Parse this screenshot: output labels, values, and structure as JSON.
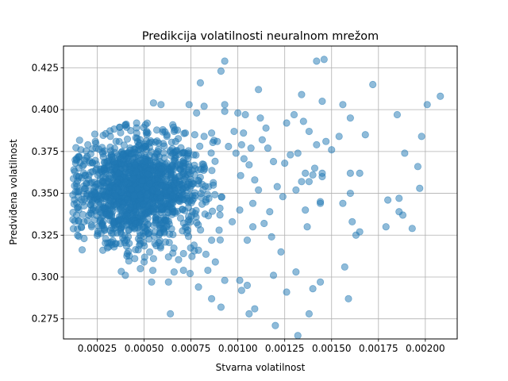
{
  "chart_data": {
    "type": "scatter",
    "title": "Predikcija volatilnosti neuralnom mrežom",
    "xlabel": "Stvarna volatilnost",
    "ylabel": "Predviđena volatilnost",
    "xlim": [
      7e-05,
      0.00217
    ],
    "ylim": [
      0.263,
      0.438
    ],
    "x_ticks": [
      {
        "value": 0.00025,
        "label": "0.00025"
      },
      {
        "value": 0.0005,
        "label": "0.00050"
      },
      {
        "value": 0.00075,
        "label": "0.00075"
      },
      {
        "value": 0.001,
        "label": "0.00100"
      },
      {
        "value": 0.00125,
        "label": "0.00125"
      },
      {
        "value": 0.0015,
        "label": "0.00150"
      },
      {
        "value": 0.00175,
        "label": "0.00175"
      },
      {
        "value": 0.002,
        "label": "0.00200"
      }
    ],
    "y_ticks": [
      {
        "value": 0.275,
        "label": "0.275"
      },
      {
        "value": 0.3,
        "label": "0.300"
      },
      {
        "value": 0.325,
        "label": "0.325"
      },
      {
        "value": 0.35,
        "label": "0.350"
      },
      {
        "value": 0.375,
        "label": "0.375"
      },
      {
        "value": 0.4,
        "label": "0.400"
      },
      {
        "value": 0.425,
        "label": "0.425"
      }
    ],
    "grid": true,
    "marker_color": "#1f77b4",
    "marker_alpha": 0.5,
    "points": [
      [
        0.00093,
        0.429
      ],
      [
        0.00091,
        0.423
      ],
      [
        0.00142,
        0.429
      ],
      [
        0.00146,
        0.43
      ],
      [
        0.00172,
        0.415
      ],
      [
        0.0008,
        0.416
      ],
      [
        0.00111,
        0.412
      ],
      [
        0.00134,
        0.409
      ],
      [
        0.00208,
        0.408
      ],
      [
        0.00201,
        0.403
      ],
      [
        0.00145,
        0.405
      ],
      [
        0.00156,
        0.403
      ],
      [
        0.00055,
        0.404
      ],
      [
        0.00059,
        0.403
      ],
      [
        0.00093,
        0.403
      ],
      [
        0.00074,
        0.403
      ],
      [
        0.00082,
        0.402
      ],
      [
        0.001,
        0.398
      ],
      [
        0.00104,
        0.397
      ],
      [
        0.0013,
        0.397
      ],
      [
        0.00185,
        0.397
      ],
      [
        0.00078,
        0.398
      ],
      [
        0.00093,
        0.399
      ],
      [
        0.00112,
        0.395
      ],
      [
        0.00126,
        0.392
      ],
      [
        0.00135,
        0.393
      ],
      [
        0.0016,
        0.395
      ],
      [
        0.00115,
        0.389
      ],
      [
        0.00098,
        0.387
      ],
      [
        0.00103,
        0.386
      ],
      [
        0.00154,
        0.384
      ],
      [
        0.00168,
        0.385
      ],
      [
        0.00198,
        0.384
      ],
      [
        0.00147,
        0.381
      ],
      [
        0.00142,
        0.379
      ],
      [
        0.00113,
        0.382
      ],
      [
        0.00138,
        0.387
      ],
      [
        0.0015,
        0.376
      ],
      [
        0.00189,
        0.374
      ],
      [
        0.00132,
        0.374
      ],
      [
        0.00128,
        0.373
      ],
      [
        0.00125,
        0.368
      ],
      [
        0.00119,
        0.369
      ],
      [
        0.00116,
        0.377
      ],
      [
        0.00107,
        0.377
      ],
      [
        0.00102,
        0.379
      ],
      [
        0.00136,
        0.362
      ],
      [
        0.00141,
        0.365
      ],
      [
        0.00145,
        0.362
      ],
      [
        0.00138,
        0.357
      ],
      [
        0.0014,
        0.361
      ],
      [
        0.00145,
        0.36
      ],
      [
        0.0016,
        0.362
      ],
      [
        0.00165,
        0.362
      ],
      [
        0.00196,
        0.366
      ],
      [
        0.00197,
        0.353
      ],
      [
        0.00131,
        0.352
      ],
      [
        0.00134,
        0.357
      ],
      [
        0.00121,
        0.354
      ],
      [
        0.00124,
        0.348
      ],
      [
        0.00144,
        0.344
      ],
      [
        0.00144,
        0.345
      ],
      [
        0.00136,
        0.34
      ],
      [
        0.00156,
        0.344
      ],
      [
        0.0016,
        0.35
      ],
      [
        0.0018,
        0.346
      ],
      [
        0.00186,
        0.347
      ],
      [
        0.00186,
        0.339
      ],
      [
        0.00188,
        0.337
      ],
      [
        0.00193,
        0.329
      ],
      [
        0.00179,
        0.33
      ],
      [
        0.00161,
        0.333
      ],
      [
        0.00165,
        0.327
      ],
      [
        0.00163,
        0.325
      ],
      [
        0.00137,
        0.33
      ],
      [
        0.00117,
        0.339
      ],
      [
        0.00114,
        0.332
      ],
      [
        0.00118,
        0.324
      ],
      [
        0.00108,
        0.33
      ],
      [
        0.00105,
        0.322
      ],
      [
        0.00123,
        0.315
      ],
      [
        0.00131,
        0.303
      ],
      [
        0.0014,
        0.293
      ],
      [
        0.00144,
        0.297
      ],
      [
        0.00157,
        0.306
      ],
      [
        0.00159,
        0.287
      ],
      [
        0.00126,
        0.291
      ],
      [
        0.00119,
        0.301
      ],
      [
        0.00105,
        0.295
      ],
      [
        0.00102,
        0.292
      ],
      [
        0.00101,
        0.298
      ],
      [
        0.00093,
        0.298
      ],
      [
        0.00091,
        0.282
      ],
      [
        0.00086,
        0.287
      ],
      [
        0.00106,
        0.278
      ],
      [
        0.00109,
        0.281
      ],
      [
        0.0012,
        0.271
      ],
      [
        0.00132,
        0.265
      ],
      [
        0.00138,
        0.278
      ],
      [
        0.00064,
        0.278
      ],
      [
        0.00079,
        0.294
      ],
      [
        0.00063,
        0.297
      ],
      [
        0.00054,
        0.297
      ],
      [
        0.00066,
        0.303
      ],
      [
        0.00071,
        0.304
      ],
      [
        0.00084,
        0.304
      ],
      [
        0.00088,
        0.309
      ],
      [
        0.0004,
        0.301
      ],
      [
        0.00048,
        0.305
      ],
      [
        0.00028,
        0.316
      ],
      [
        0.00034,
        0.318
      ],
      [
        0.00045,
        0.311
      ],
      [
        0.00018,
        0.323
      ],
      [
        0.00014,
        0.337
      ],
      [
        0.00012,
        0.349
      ],
      [
        0.00013,
        0.363
      ],
      [
        0.00015,
        0.372
      ],
      [
        0.0002,
        0.379
      ],
      [
        0.00024,
        0.381
      ],
      [
        0.00032,
        0.384
      ],
      [
        0.0004,
        0.391
      ],
      [
        0.00046,
        0.392
      ],
      [
        0.00052,
        0.386
      ],
      [
        0.0006,
        0.388
      ],
      [
        0.00066,
        0.387
      ],
      [
        0.00072,
        0.386
      ],
      [
        0.00077,
        0.385
      ],
      [
        0.00082,
        0.384
      ],
      [
        0.00086,
        0.386
      ],
      [
        0.00089,
        0.381
      ],
      [
        0.00095,
        0.378
      ],
      [
        0.00099,
        0.374
      ],
      [
        0.00106,
        0.367
      ],
      [
        0.00109,
        0.358
      ],
      [
        0.00111,
        0.352
      ],
      [
        0.00108,
        0.344
      ],
      [
        0.00101,
        0.34
      ],
      [
        0.00097,
        0.333
      ],
      [
        0.0009,
        0.328
      ],
      [
        0.00086,
        0.322
      ],
      [
        0.00079,
        0.316
      ],
      [
        0.00071,
        0.314
      ],
      [
        0.00063,
        0.312
      ],
      [
        0.00055,
        0.311
      ],
      [
        0.0005,
        0.309
      ],
      [
        0.00041,
        0.314
      ],
      [
        0.00035,
        0.32
      ],
      [
        0.00027,
        0.326
      ],
      [
        0.00022,
        0.33
      ],
      [
        0.00018,
        0.333
      ]
    ],
    "cluster": {
      "center_x": 0.00047,
      "center_y": 0.352,
      "spread_x": 0.00016,
      "spread_y": 0.015,
      "count": 1500
    }
  }
}
